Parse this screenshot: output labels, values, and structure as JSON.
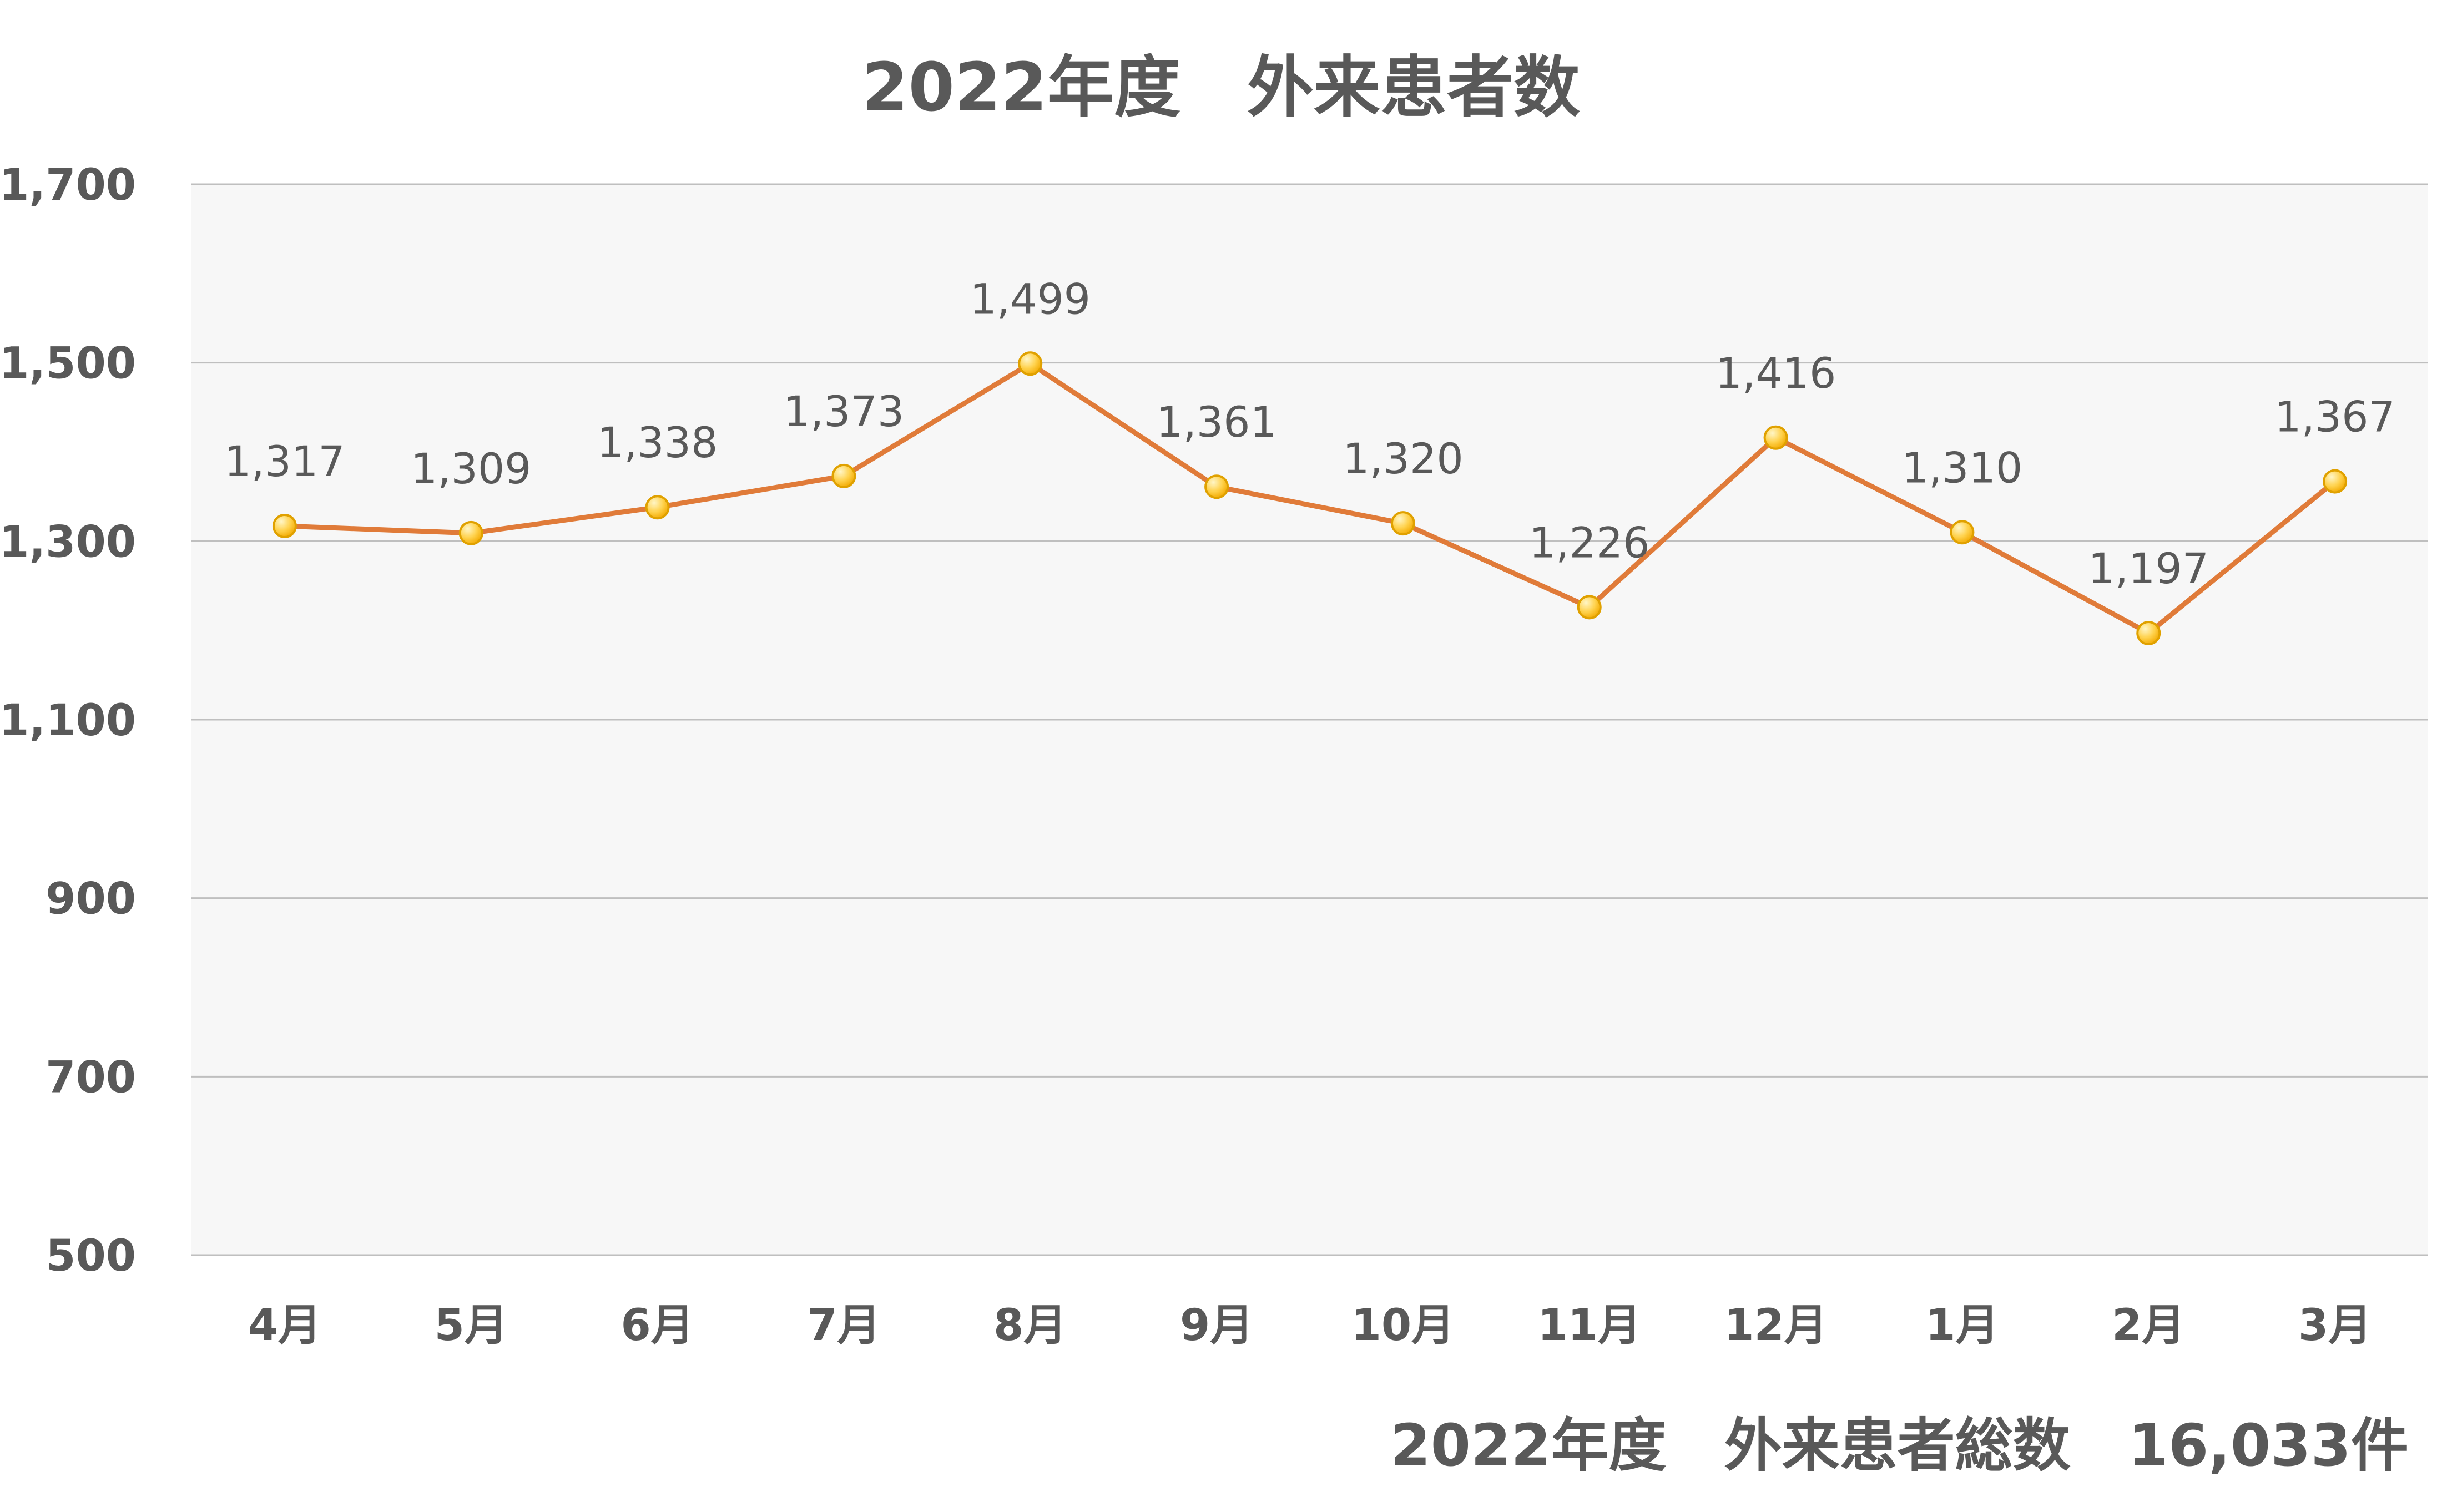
{
  "chart_data": {
    "type": "line",
    "title": "2022年度　外来患者数",
    "footer": "2022年度　外来患者総数　16,033件",
    "categories": [
      "4月",
      "5月",
      "6月",
      "7月",
      "8月",
      "9月",
      "10月",
      "11月",
      "12月",
      "1月",
      "2月",
      "3月"
    ],
    "series": [
      {
        "values": [
          1317,
          1309,
          1338,
          1373,
          1499,
          1361,
          1320,
          1226,
          1416,
          1310,
          1197,
          1367
        ],
        "color": "#E07B39",
        "marker_color": "#FFC000"
      }
    ],
    "data_labels": [
      "1,317",
      "1,309",
      "1,338",
      "1,373",
      "1,499",
      "1,361",
      "1,320",
      "1,226",
      "1,416",
      "1,310",
      "1,197",
      "1,367"
    ],
    "y_ticks": [
      500,
      700,
      900,
      1100,
      1300,
      1500,
      1700
    ],
    "y_tick_labels": [
      "500",
      "700",
      "900",
      "1,100",
      "1,300",
      "1,500",
      "1,700"
    ],
    "ylim": [
      500,
      1700
    ],
    "grid": true,
    "legend": "none",
    "plot_background": "#F7F7F7",
    "grid_color": "#BFBFBF",
    "text_color": "#595959"
  }
}
